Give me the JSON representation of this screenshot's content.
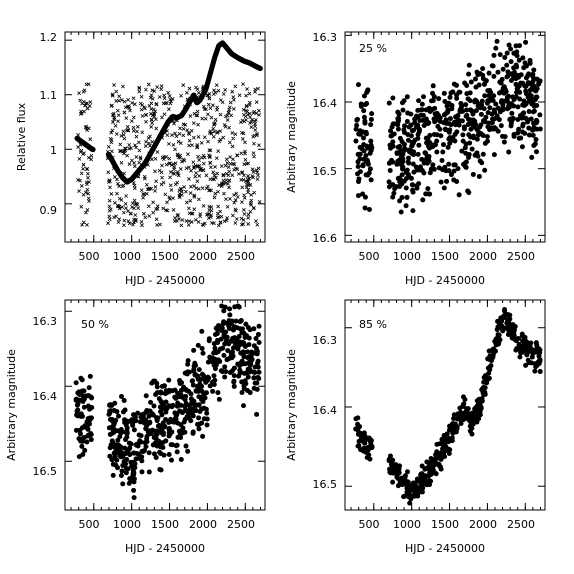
{
  "chart_data": [
    {
      "type": "scatter",
      "panel": "top-left",
      "xlabel": "HJD - 2450000",
      "ylabel": "Relative flux",
      "xlim": [
        120,
        2760
      ],
      "ylim": [
        0.83,
        1.215
      ],
      "y_inverted": false,
      "xticks": [
        500,
        1000,
        1500,
        2000,
        2500
      ],
      "yticks": [
        0.9,
        1.0,
        1.1,
        1.2
      ],
      "ytick_labels": [
        "0.9",
        "1",
        "1.1",
        "1.2"
      ],
      "annotation": "",
      "series": [
        {
          "marker": "cross",
          "description_values": "random-phase sampling of a 0.86–1.12 band",
          "x_segments": [
            [
              290,
              470
            ],
            [
              680,
              2690
            ]
          ],
          "y_range": [
            0.86,
            1.12
          ]
        },
        {
          "marker": "dot",
          "x": [
            280,
            330,
            380,
            430,
            480,
            700,
            760,
            820,
            880,
            940,
            1000,
            1060,
            1120,
            1180,
            1240,
            1300,
            1360,
            1420,
            1480,
            1540,
            1600,
            1660,
            1720,
            1780,
            1820,
            1860,
            1900,
            1940,
            1980,
            2020,
            2060,
            2100,
            2150,
            2200,
            2260,
            2320,
            2400,
            2480,
            2560,
            2640,
            2700
          ],
          "y": [
            1.02,
            1.015,
            1.01,
            1.005,
            1.0,
            0.99,
            0.975,
            0.96,
            0.948,
            0.94,
            0.945,
            0.955,
            0.965,
            0.975,
            0.99,
            1.005,
            1.02,
            1.035,
            1.05,
            1.06,
            1.058,
            1.062,
            1.075,
            1.09,
            1.1,
            1.085,
            1.09,
            1.1,
            1.11,
            1.13,
            1.15,
            1.17,
            1.19,
            1.195,
            1.185,
            1.175,
            1.168,
            1.162,
            1.158,
            1.152,
            1.148
          ]
        }
      ]
    },
    {
      "type": "scatter",
      "panel": "top-right",
      "xlabel": "HJD - 2450000",
      "ylabel": "Arbitrary magnitude",
      "xlim": [
        120,
        2760
      ],
      "ylim": [
        16.295,
        16.61
      ],
      "y_inverted": true,
      "xticks": [
        500,
        1000,
        1500,
        2000,
        2500
      ],
      "yticks": [
        16.3,
        16.4,
        16.5,
        16.6
      ],
      "ytick_labels": [
        "16.3",
        "16.4",
        "16.5",
        "16.6"
      ],
      "annotation": "25 %",
      "trend_x": [
        280,
        480,
        700,
        1000,
        1200,
        1500,
        1800,
        2000,
        2200,
        2400,
        2700
      ],
      "trend_y": [
        16.46,
        16.47,
        16.47,
        16.48,
        16.45,
        16.44,
        16.43,
        16.41,
        16.38,
        16.39,
        16.41
      ],
      "scatter": 0.12
    },
    {
      "type": "scatter",
      "panel": "bottom-left",
      "xlabel": "HJD - 2450000",
      "ylabel": "Arbitrary magnitude",
      "xlim": [
        120,
        2760
      ],
      "ylim": [
        16.285,
        16.565
      ],
      "y_inverted": true,
      "xticks": [
        500,
        1000,
        1500,
        2000,
        2500
      ],
      "yticks": [
        16.3,
        16.4,
        16.5
      ],
      "ytick_labels": [
        "16.3",
        "16.4",
        "16.5"
      ],
      "annotation": "50 %",
      "trend_x": [
        280,
        480,
        700,
        1000,
        1200,
        1500,
        1800,
        2000,
        2200,
        2400,
        2700
      ],
      "trend_y": [
        16.43,
        16.45,
        16.46,
        16.49,
        16.46,
        16.44,
        16.42,
        16.39,
        16.34,
        16.36,
        16.37
      ],
      "scatter": 0.085
    },
    {
      "type": "scatter",
      "panel": "bottom-right",
      "xlabel": "HJD - 2450000",
      "ylabel": "Arbitrary magnitude",
      "xlim": [
        120,
        2760
      ],
      "ylim": [
        16.265,
        16.53
      ],
      "y_inverted": true,
      "xticks": [
        500,
        1000,
        1500,
        2000,
        2500
      ],
      "yticks": [
        16.3,
        16.4,
        16.5
      ],
      "ytick_labels": [
        "16.3",
        "16.4",
        "16.5"
      ],
      "annotation": "85 %",
      "trend_x": [
        280,
        400,
        600,
        800,
        1000,
        1100,
        1300,
        1500,
        1700,
        1800,
        1900,
        2000,
        2100,
        2200,
        2300,
        2400,
        2550,
        2700
      ],
      "trend_y": [
        16.43,
        16.45,
        16.46,
        16.48,
        16.51,
        16.5,
        16.47,
        16.44,
        16.4,
        16.42,
        16.4,
        16.36,
        16.32,
        16.29,
        16.3,
        16.32,
        16.33,
        16.34
      ],
      "scatter": 0.025
    }
  ]
}
